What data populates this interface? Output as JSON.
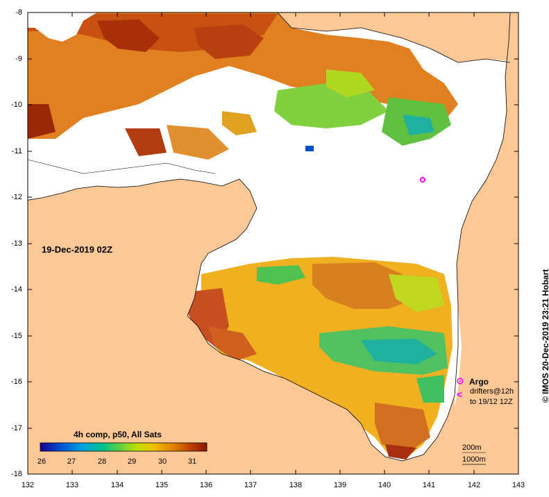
{
  "map": {
    "date_label": "19-Dec-2019 02Z",
    "lat_ticks": [
      "-8",
      "-9",
      "-10",
      "-11",
      "-12",
      "-13",
      "-14",
      "-15",
      "-16",
      "-17",
      "-18"
    ],
    "lon_ticks": [
      "132",
      "133",
      "134",
      "135",
      "136",
      "137",
      "138",
      "139",
      "140",
      "141",
      "142",
      "143"
    ],
    "lon_range": [
      132,
      143
    ],
    "lat_range": [
      -18,
      -8
    ]
  },
  "colorbar": {
    "title": "4h comp, p50, All Sats",
    "ticks": [
      "26",
      "27",
      "28",
      "29",
      "30",
      "31"
    ],
    "range": [
      25.8,
      31.5
    ],
    "colors": [
      "#1a0090",
      "#0050d0",
      "#00a0e0",
      "#00c090",
      "#60d040",
      "#c0e000",
      "#f0c000",
      "#e08000",
      "#c04000",
      "#8a1800"
    ]
  },
  "legend": {
    "argo_label": "Argo",
    "drifters_label": "drifters@12h",
    "drifters_date": "to 19/12 12Z",
    "argo_icon": "argo-float-icon",
    "drifter_icon": "drifter-arrow-icon",
    "marker_color": "#ff00ff"
  },
  "scale": {
    "contour_200": "200m",
    "contour_1000": "1000m"
  },
  "credit": "© IMOS 20-Dec-2019 23:21 Hobart",
  "colors": {
    "land": "#fbc896",
    "no_data": "#ffffff",
    "border": "#000000"
  }
}
